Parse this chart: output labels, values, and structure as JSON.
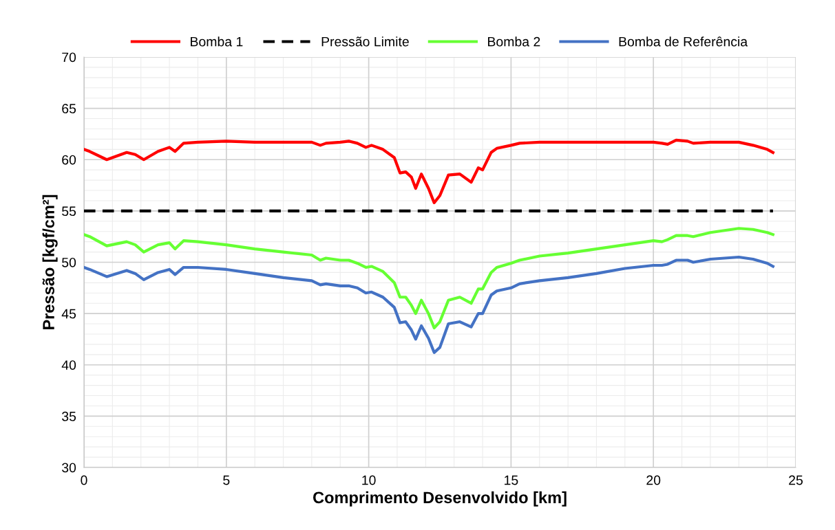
{
  "chart_data": {
    "type": "line",
    "xlabel": "Comprimento Desenvolvido [km]",
    "ylabel": "Pressão [kgf/cm²]",
    "x": [
      0,
      0.2,
      0.8,
      1.5,
      1.8,
      2.1,
      2.6,
      3.0,
      3.2,
      3.5,
      4,
      5,
      6,
      7,
      8,
      8.3,
      8.5,
      9,
      9.3,
      9.6,
      9.9,
      10.1,
      10.5,
      10.9,
      11.1,
      11.3,
      11.5,
      11.65,
      11.85,
      12.1,
      12.3,
      12.5,
      12.8,
      13.2,
      13.6,
      13.85,
      14.0,
      14.3,
      14.5,
      15,
      15.3,
      16,
      17,
      18,
      19,
      20,
      20.3,
      20.5,
      20.8,
      21.2,
      21.4,
      22,
      23,
      23.5,
      24,
      24.2
    ],
    "series": [
      {
        "name": "Bomba 1",
        "color": "#ff0000",
        "line_style": "solid",
        "values": [
          61.0,
          60.8,
          60.0,
          60.7,
          60.5,
          60.0,
          60.8,
          61.2,
          60.8,
          61.6,
          61.7,
          61.8,
          61.7,
          61.7,
          61.7,
          61.4,
          61.6,
          61.7,
          61.8,
          61.6,
          61.2,
          61.4,
          61.0,
          60.2,
          58.7,
          58.8,
          58.3,
          57.2,
          58.6,
          57.2,
          55.8,
          56.5,
          58.5,
          58.6,
          57.8,
          59.2,
          59.0,
          60.7,
          61.1,
          61.4,
          61.6,
          61.7,
          61.7,
          61.7,
          61.7,
          61.7,
          61.6,
          61.5,
          61.9,
          61.8,
          61.6,
          61.7,
          61.7,
          61.4,
          61.0,
          60.7
        ]
      },
      {
        "name": "Pressão Limite",
        "color": "#000000",
        "line_style": "dashed",
        "x": [
          0,
          24.2
        ],
        "values": [
          55,
          55
        ]
      },
      {
        "name": "Bomba 2",
        "color": "#66ff33",
        "line_style": "solid",
        "values": [
          52.7,
          52.5,
          51.6,
          52.0,
          51.7,
          51.0,
          51.7,
          51.9,
          51.3,
          52.1,
          52.0,
          51.7,
          51.3,
          51.0,
          50.7,
          50.2,
          50.4,
          50.2,
          50.2,
          49.9,
          49.5,
          49.6,
          49.1,
          48.0,
          46.6,
          46.6,
          45.8,
          45.0,
          46.3,
          45.0,
          43.6,
          44.2,
          46.3,
          46.6,
          46.0,
          47.4,
          47.4,
          49.0,
          49.5,
          49.9,
          50.2,
          50.6,
          50.9,
          51.3,
          51.7,
          52.1,
          52.0,
          52.2,
          52.6,
          52.6,
          52.5,
          52.9,
          53.3,
          53.2,
          52.9,
          52.7
        ]
      },
      {
        "name": "Bomba de Referência",
        "color": "#4472c4",
        "line_style": "solid",
        "values": [
          49.5,
          49.3,
          48.6,
          49.2,
          48.9,
          48.3,
          49.0,
          49.3,
          48.8,
          49.5,
          49.5,
          49.3,
          48.9,
          48.5,
          48.2,
          47.8,
          47.9,
          47.7,
          47.7,
          47.5,
          47.0,
          47.1,
          46.6,
          45.6,
          44.1,
          44.2,
          43.4,
          42.5,
          43.8,
          42.6,
          41.2,
          41.7,
          44.0,
          44.2,
          43.7,
          45.0,
          45.0,
          46.8,
          47.2,
          47.5,
          47.9,
          48.2,
          48.5,
          48.9,
          49.4,
          49.7,
          49.7,
          49.8,
          50.2,
          50.2,
          50.0,
          50.3,
          50.5,
          50.3,
          49.9,
          49.6
        ]
      }
    ],
    "xlim": [
      0,
      25
    ],
    "xticks": [
      0,
      5,
      10,
      15,
      20,
      25
    ],
    "ylim": [
      30,
      70
    ],
    "yticks": [
      30,
      35,
      40,
      45,
      50,
      55,
      60,
      65,
      70
    ],
    "grid": true,
    "legend": "top",
    "marker": "none"
  }
}
